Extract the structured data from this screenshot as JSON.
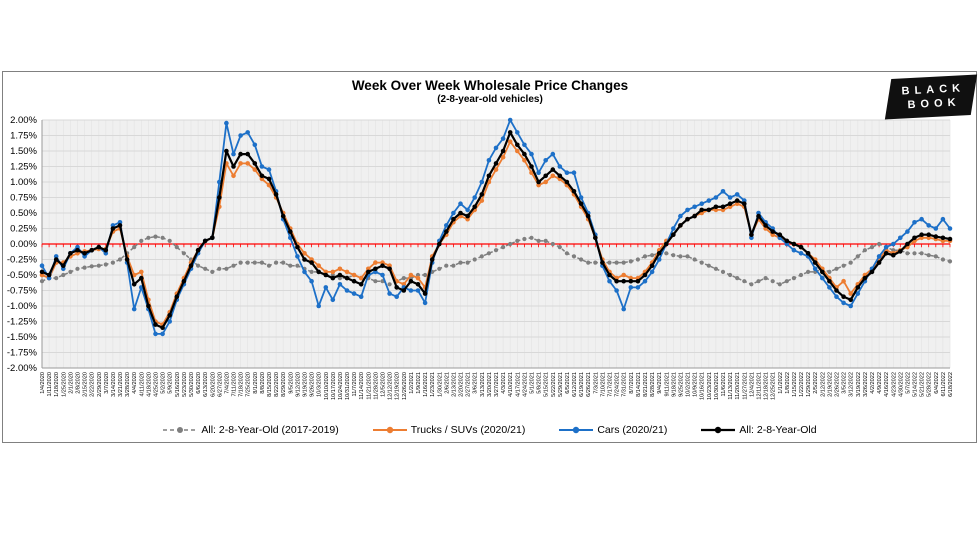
{
  "header": {
    "title": "Week Over Week Wholesale Price Changes",
    "subtitle": "(2-8-year-old vehicles)"
  },
  "logo": {
    "line1": "BLACK",
    "line2": "BOOK"
  },
  "chart_data": {
    "type": "line",
    "title": "Week Over Week Wholesale Price Changes",
    "subtitle": "(2-8-year-old vehicles)",
    "xlabel": "",
    "ylabel": "",
    "ylim": [
      -2.0,
      2.0
    ],
    "grid": true,
    "legend_position": "bottom",
    "plot_bg": "#f0f0f0",
    "grid_minor_color": "#e4e4e4",
    "grid_major_color": "#d8d8d8",
    "axis_line_color": "#9a9a9a",
    "zero_line_color": "#ff0000",
    "y_ticks": [
      "2.00%",
      "1.75%",
      "1.50%",
      "1.25%",
      "1.00%",
      "0.75%",
      "0.50%",
      "0.25%",
      "0.00%",
      "-0.25%",
      "-0.50%",
      "-0.75%",
      "-1.00%",
      "-1.25%",
      "-1.50%",
      "-1.75%",
      "-2.00%"
    ],
    "categories": [
      "1/4/2020",
      "1/11/2020",
      "1/18/2020",
      "1/25/2020",
      "2/1/2020",
      "2/8/2020",
      "2/15/2020",
      "2/22/2020",
      "2/29/2020",
      "3/7/2020",
      "3/14/2020",
      "3/21/2020",
      "3/28/2020",
      "4/4/2020",
      "4/11/2020",
      "4/18/2020",
      "4/25/2020",
      "5/2/2020",
      "5/9/2020",
      "5/16/2020",
      "5/23/2020",
      "5/30/2020",
      "6/6/2020",
      "6/13/2020",
      "6/20/2020",
      "6/27/2020",
      "7/4/2020",
      "7/11/2020",
      "7/18/2020",
      "7/25/2020",
      "8/1/2020",
      "8/8/2020",
      "8/15/2020",
      "8/22/2020",
      "8/29/2020",
      "9/5/2020",
      "9/12/2020",
      "9/19/2020",
      "9/26/2020",
      "10/3/2020",
      "10/10/2020",
      "10/17/2020",
      "10/24/2020",
      "10/31/2020",
      "11/7/2020",
      "11/14/2020",
      "11/21/2020",
      "11/28/2020",
      "12/5/2020",
      "12/12/2020",
      "12/19/2020",
      "12/26/2020",
      "1/2/2021",
      "1/9/2021",
      "1/16/2021",
      "1/23/2021",
      "1/30/2021",
      "2/6/2021",
      "2/13/2021",
      "2/20/2021",
      "2/27/2021",
      "3/6/2021",
      "3/13/2021",
      "3/20/2021",
      "3/27/2021",
      "4/3/2021",
      "4/10/2021",
      "4/17/2021",
      "4/24/2021",
      "5/1/2021",
      "5/8/2021",
      "5/15/2021",
      "5/22/2021",
      "5/29/2021",
      "6/5/2021",
      "6/12/2021",
      "6/19/2021",
      "6/26/2021",
      "7/3/2021",
      "7/10/2021",
      "7/17/2021",
      "7/24/2021",
      "7/31/2021",
      "8/7/2021",
      "8/14/2021",
      "8/21/2021",
      "8/28/2021",
      "9/4/2021",
      "9/11/2021",
      "9/18/2021",
      "9/25/2021",
      "10/2/2021",
      "10/9/2021",
      "10/16/2021",
      "10/23/2021",
      "10/30/2021",
      "11/6/2021",
      "11/13/2021",
      "11/20/2021",
      "11/27/2021",
      "12/4/2021",
      "12/11/2021",
      "12/18/2021",
      "12/25/2021",
      "1/1/2022",
      "1/8/2022",
      "1/15/2022",
      "1/22/2022",
      "1/29/2022",
      "2/5/2022",
      "2/12/2022",
      "2/19/2022",
      "2/26/2022",
      "3/5/2022",
      "3/12/2022",
      "3/19/2022",
      "3/26/2022",
      "4/2/2022",
      "4/9/2022",
      "4/16/2022",
      "4/23/2022",
      "4/30/2022",
      "5/7/2022",
      "5/14/2022",
      "5/21/2022",
      "5/28/2022",
      "6/4/2022",
      "6/11/2022",
      "6/18/2022"
    ],
    "series": [
      {
        "name": "All: 2-8-Year-Old (2017-2019)",
        "color": "#7f7f7f",
        "style": "dashed",
        "values": [
          -0.6,
          -0.55,
          -0.55,
          -0.5,
          -0.45,
          -0.4,
          -0.38,
          -0.36,
          -0.35,
          -0.33,
          -0.3,
          -0.25,
          -0.15,
          -0.05,
          0.05,
          0.1,
          0.12,
          0.1,
          0.05,
          -0.05,
          -0.15,
          -0.25,
          -0.35,
          -0.4,
          -0.45,
          -0.4,
          -0.4,
          -0.35,
          -0.3,
          -0.3,
          -0.3,
          -0.3,
          -0.35,
          -0.3,
          -0.3,
          -0.35,
          -0.35,
          -0.4,
          -0.45,
          -0.45,
          -0.5,
          -0.5,
          -0.55,
          -0.55,
          -0.5,
          -0.55,
          -0.55,
          -0.6,
          -0.6,
          -0.65,
          -0.6,
          -0.55,
          -0.55,
          -0.5,
          -0.5,
          -0.45,
          -0.4,
          -0.35,
          -0.35,
          -0.3,
          -0.3,
          -0.25,
          -0.2,
          -0.15,
          -0.1,
          -0.05,
          0,
          0.05,
          0.08,
          0.1,
          0.05,
          0.05,
          0,
          -0.05,
          -0.15,
          -0.2,
          -0.25,
          -0.3,
          -0.3,
          -0.3,
          -0.3,
          -0.3,
          -0.3,
          -0.28,
          -0.25,
          -0.2,
          -0.18,
          -0.15,
          -0.15,
          -0.18,
          -0.2,
          -0.2,
          -0.25,
          -0.3,
          -0.35,
          -0.4,
          -0.45,
          -0.5,
          -0.55,
          -0.6,
          -0.65,
          -0.6,
          -0.55,
          -0.6,
          -0.65,
          -0.6,
          -0.55,
          -0.5,
          -0.45,
          -0.45,
          -0.4,
          -0.45,
          -0.4,
          -0.35,
          -0.3,
          -0.2,
          -0.1,
          -0.05,
          0,
          -0.05,
          -0.1,
          -0.1,
          -0.15,
          -0.15,
          -0.15,
          -0.18,
          -0.2,
          -0.25,
          -0.28
        ]
      },
      {
        "name": "Trucks / SUVs (2020/21)",
        "color": "#ed7d31",
        "style": "solid",
        "values": [
          -0.5,
          -0.55,
          -0.3,
          -0.3,
          -0.2,
          -0.15,
          -0.12,
          -0.1,
          -0.08,
          -0.08,
          0.2,
          0.25,
          -0.2,
          -0.5,
          -0.45,
          -0.9,
          -1.25,
          -1.3,
          -1.1,
          -0.8,
          -0.55,
          -0.3,
          -0.1,
          0.05,
          0.1,
          0.6,
          1.3,
          1.1,
          1.3,
          1.3,
          1.2,
          1.05,
          0.95,
          0.75,
          0.5,
          0.25,
          0,
          -0.15,
          -0.25,
          -0.35,
          -0.45,
          -0.45,
          -0.4,
          -0.45,
          -0.5,
          -0.55,
          -0.4,
          -0.3,
          -0.3,
          -0.35,
          -0.6,
          -0.65,
          -0.5,
          -0.55,
          -0.7,
          -0.2,
          0,
          0.15,
          0.35,
          0.45,
          0.4,
          0.55,
          0.7,
          1,
          1.2,
          1.4,
          1.65,
          1.5,
          1.35,
          1.15,
          0.95,
          1,
          1.1,
          1.05,
          0.95,
          0.8,
          0.6,
          0.4,
          0.1,
          -0.25,
          -0.45,
          -0.55,
          -0.5,
          -0.55,
          -0.55,
          -0.45,
          -0.3,
          -0.1,
          0.05,
          0.15,
          0.3,
          0.4,
          0.45,
          0.5,
          0.55,
          0.55,
          0.55,
          0.6,
          0.65,
          0.6,
          0.15,
          0.4,
          0.25,
          0.15,
          0.1,
          0.05,
          0,
          -0.05,
          -0.15,
          -0.25,
          -0.4,
          -0.55,
          -0.7,
          -0.6,
          -0.8,
          -0.65,
          -0.5,
          -0.4,
          -0.25,
          -0.1,
          -0.15,
          -0.1,
          -0.05,
          0.05,
          0.1,
          0.1,
          0.08,
          0.05,
          0.05
        ]
      },
      {
        "name": "Cars (2020/21)",
        "color": "#1d70c8",
        "style": "solid",
        "values": [
          -0.35,
          -0.55,
          -0.2,
          -0.4,
          -0.15,
          -0.05,
          -0.2,
          -0.1,
          -0.05,
          -0.15,
          0.3,
          0.35,
          -0.3,
          -1.05,
          -0.7,
          -1.05,
          -1.45,
          -1.45,
          -1.25,
          -0.9,
          -0.65,
          -0.4,
          -0.15,
          0.05,
          0.1,
          1,
          1.95,
          1.45,
          1.75,
          1.8,
          1.6,
          1.25,
          1.2,
          0.85,
          0.4,
          0.1,
          -0.2,
          -0.45,
          -0.6,
          -1,
          -0.7,
          -0.9,
          -0.65,
          -0.75,
          -0.8,
          -0.85,
          -0.5,
          -0.45,
          -0.5,
          -0.8,
          -0.85,
          -0.7,
          -0.75,
          -0.75,
          -0.95,
          -0.3,
          0.05,
          0.3,
          0.5,
          0.65,
          0.55,
          0.75,
          1,
          1.35,
          1.55,
          1.7,
          2,
          1.8,
          1.6,
          1.45,
          1.15,
          1.35,
          1.45,
          1.25,
          1.15,
          1.15,
          0.75,
          0.5,
          0.15,
          -0.35,
          -0.6,
          -0.75,
          -1.05,
          -0.7,
          -0.7,
          -0.6,
          -0.45,
          -0.25,
          0,
          0.25,
          0.45,
          0.55,
          0.6,
          0.65,
          0.7,
          0.75,
          0.85,
          0.75,
          0.8,
          0.7,
          0.1,
          0.5,
          0.35,
          0.25,
          0.1,
          0,
          -0.1,
          -0.15,
          -0.2,
          -0.4,
          -0.55,
          -0.7,
          -0.85,
          -0.95,
          -1,
          -0.8,
          -0.6,
          -0.4,
          -0.2,
          -0.05,
          0,
          0.1,
          0.2,
          0.35,
          0.4,
          0.3,
          0.25,
          0.4,
          0.25
        ]
      },
      {
        "name": "All: 2-8-Year-Old",
        "color": "#000000",
        "style": "solid",
        "values": [
          -0.45,
          -0.5,
          -0.25,
          -0.35,
          -0.15,
          -0.1,
          -0.15,
          -0.1,
          -0.05,
          -0.1,
          0.25,
          0.3,
          -0.25,
          -0.65,
          -0.55,
          -1,
          -1.3,
          -1.35,
          -1.15,
          -0.85,
          -0.6,
          -0.35,
          -0.1,
          0.05,
          0.1,
          0.75,
          1.5,
          1.25,
          1.45,
          1.45,
          1.3,
          1.1,
          1.05,
          0.8,
          0.45,
          0.2,
          -0.05,
          -0.25,
          -0.3,
          -0.45,
          -0.5,
          -0.55,
          -0.5,
          -0.55,
          -0.6,
          -0.65,
          -0.45,
          -0.4,
          -0.35,
          -0.4,
          -0.7,
          -0.75,
          -0.6,
          -0.65,
          -0.8,
          -0.25,
          0,
          0.2,
          0.4,
          0.5,
          0.45,
          0.6,
          0.8,
          1.1,
          1.3,
          1.5,
          1.8,
          1.6,
          1.45,
          1.25,
          1,
          1.1,
          1.2,
          1.1,
          1,
          0.85,
          0.65,
          0.45,
          0.1,
          -0.3,
          -0.5,
          -0.6,
          -0.6,
          -0.6,
          -0.6,
          -0.5,
          -0.35,
          -0.15,
          0,
          0.15,
          0.3,
          0.4,
          0.45,
          0.55,
          0.55,
          0.6,
          0.6,
          0.65,
          0.7,
          0.65,
          0.15,
          0.45,
          0.3,
          0.2,
          0.15,
          0.05,
          0,
          -0.05,
          -0.15,
          -0.3,
          -0.45,
          -0.6,
          -0.75,
          -0.85,
          -0.9,
          -0.7,
          -0.55,
          -0.45,
          -0.3,
          -0.15,
          -0.18,
          -0.12,
          0,
          0.1,
          0.15,
          0.15,
          0.12,
          0.1,
          0.08
        ]
      }
    ]
  }
}
